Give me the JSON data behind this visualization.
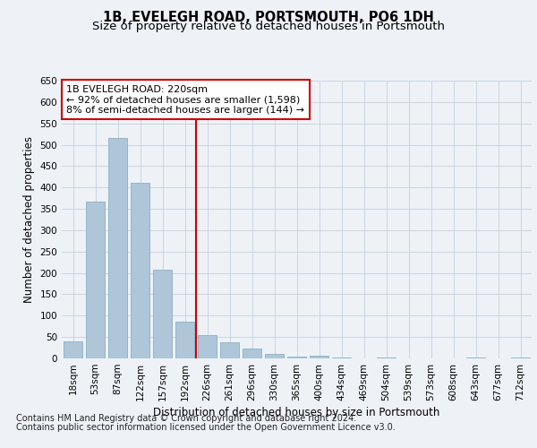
{
  "title1": "1B, EVELEGH ROAD, PORTSMOUTH, PO6 1DH",
  "title2": "Size of property relative to detached houses in Portsmouth",
  "xlabel": "Distribution of detached houses by size in Portsmouth",
  "ylabel": "Number of detached properties",
  "categories": [
    "18sqm",
    "53sqm",
    "87sqm",
    "122sqm",
    "157sqm",
    "192sqm",
    "226sqm",
    "261sqm",
    "296sqm",
    "330sqm",
    "365sqm",
    "400sqm",
    "434sqm",
    "469sqm",
    "504sqm",
    "539sqm",
    "573sqm",
    "608sqm",
    "643sqm",
    "677sqm",
    "712sqm"
  ],
  "values": [
    40,
    367,
    515,
    412,
    207,
    85,
    55,
    37,
    24,
    10,
    5,
    7,
    2,
    1,
    3,
    0,
    1,
    0,
    3,
    0,
    3
  ],
  "bar_color": "#aec6d8",
  "bar_edge_color": "#8aafc8",
  "vline_x_idx": 6,
  "vline_color": "#cc0000",
  "annotation_line1": "1B EVELEGH ROAD: 220sqm",
  "annotation_line2": "← 92% of detached houses are smaller (1,598)",
  "annotation_line3": "8% of semi-detached houses are larger (144) →",
  "annotation_box_facecolor": "#ffffff",
  "annotation_box_edgecolor": "#cc0000",
  "ylim": [
    0,
    650
  ],
  "footnote1": "Contains HM Land Registry data © Crown copyright and database right 2024.",
  "footnote2": "Contains public sector information licensed under the Open Government Licence v3.0.",
  "bg_color": "#eef2f7",
  "title1_fontsize": 10.5,
  "title2_fontsize": 9.5,
  "axis_label_fontsize": 8.5,
  "tick_fontsize": 7.5,
  "annotation_fontsize": 8,
  "footnote_fontsize": 7
}
